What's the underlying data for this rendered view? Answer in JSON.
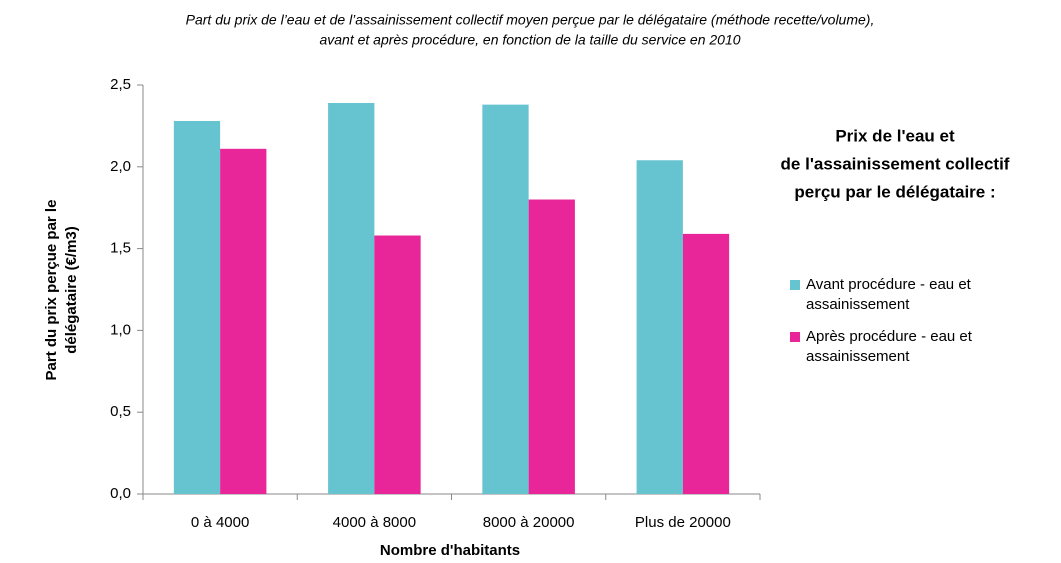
{
  "chart_data": {
    "type": "bar",
    "title": [
      "Part du prix de l’eau et de l’assainissement collectif moyen perçue par le délégataire (méthode recette/volume),",
      "avant et après procédure, en fonction de la taille du service en 2010"
    ],
    "y_label": [
      "Part du prix perçue par le",
      "délégataire (€/m3)"
    ],
    "x_label": "Nombre d'habitants",
    "legend_title": [
      "Prix de l'eau et",
      "de l'assainissement collectif",
      "perçu par le délégataire :"
    ],
    "categories": [
      "0 à 4000",
      "4000 à 8000",
      "8000 à 20000",
      "Plus de 20000"
    ],
    "series": [
      {
        "name": "Avant procédure - eau et assainissement",
        "color": "#66c3d0",
        "values": [
          2.28,
          2.39,
          2.38,
          2.04
        ]
      },
      {
        "name": "Après procédure - eau et assainissement",
        "color": "#e9259a",
        "values": [
          2.11,
          1.58,
          1.8,
          1.59
        ]
      }
    ],
    "ylim": [
      0,
      2.5
    ],
    "yticks": [
      {
        "value": 0,
        "label": "0,0"
      },
      {
        "value": 0.5,
        "label": "0,5"
      },
      {
        "value": 1,
        "label": "1,0"
      },
      {
        "value": 1.5,
        "label": "1,5"
      },
      {
        "value": 2,
        "label": "2,0"
      },
      {
        "value": 2.5,
        "label": "2,5"
      }
    ],
    "grid": false
  }
}
